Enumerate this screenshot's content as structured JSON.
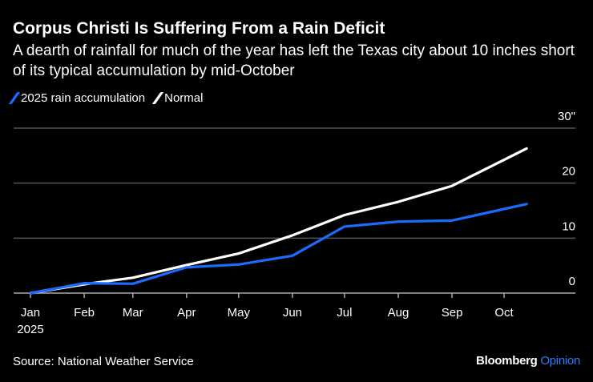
{
  "title": "Corpus Christi Is Suffering From a Rain Deficit",
  "subtitle": "A dearth of rainfall for much of the year has left the Texas city about 10 inches short of its typical accumulation by mid-October",
  "source": "Source: National Weather Service",
  "brand": {
    "name": "Bloomberg",
    "suffix": "Opinion"
  },
  "chart_data": {
    "type": "line",
    "title": "Corpus Christi Is Suffering From a Rain Deficit",
    "x": [
      "2025-01-01",
      "2025-02-01",
      "2025-03-01",
      "2025-04-01",
      "2025-05-01",
      "2025-06-01",
      "2025-07-01",
      "2025-08-01",
      "2025-09-01",
      "2025-10-14"
    ],
    "series": [
      {
        "name": "2025 rain accumulation",
        "color": "#1a6cff",
        "values": [
          0,
          1.8,
          1.7,
          4.7,
          5.2,
          6.8,
          12.1,
          13.0,
          13.2,
          16.2
        ]
      },
      {
        "name": "Normal",
        "color": "#ffffff",
        "values": [
          0,
          1.6,
          2.8,
          5.1,
          7.2,
          10.5,
          14.2,
          16.6,
          19.5,
          26.3
        ]
      }
    ],
    "ylim": [
      0,
      30
    ],
    "yticks": [
      0,
      10,
      20,
      30
    ],
    "ytick_labels": [
      "0",
      "10",
      "20",
      "30\""
    ],
    "xtick_labels": [
      "Jan",
      "Feb",
      "Mar",
      "Apr",
      "May",
      "Jun",
      "Jul",
      "Aug",
      "Sep",
      "Oct"
    ],
    "xtick_sublabel": "2025",
    "xtick_dates": [
      "2025-01-01",
      "2025-02-01",
      "2025-03-01",
      "2025-04-01",
      "2025-05-01",
      "2025-06-01",
      "2025-07-01",
      "2025-08-01",
      "2025-09-01",
      "2025-10-01"
    ],
    "grid": true,
    "y_axis_side": "right",
    "legend_position": "top-left"
  }
}
